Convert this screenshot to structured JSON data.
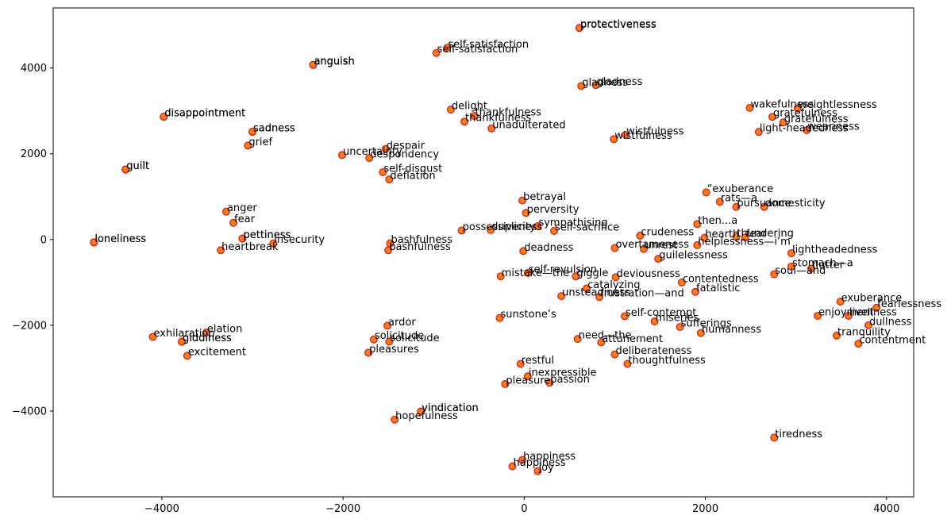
{
  "chart_data": {
    "type": "scatter",
    "title": "",
    "xlabel": "",
    "ylabel": "",
    "xlim": [
      -5200,
      4300
    ],
    "ylim": [
      -6000,
      5400
    ],
    "xticks": [
      -4000,
      -2000,
      0,
      2000,
      4000
    ],
    "xtick_labels": [
      "−4000",
      "−2000",
      "0",
      "2000",
      "4000"
    ],
    "yticks": [
      -4000,
      -2000,
      0,
      2000,
      4000
    ],
    "ytick_labels": [
      "−4000",
      "−2000",
      "0",
      "2000",
      "4000"
    ],
    "grid": false,
    "marker_fill": "#ff7f0e",
    "marker_edge": "#d62728",
    "points": [
      {
        "label": "protectiveness",
        "x": 610,
        "y": 4930
      },
      {
        "label": "protectiveness",
        "x": 610,
        "y": 4935
      },
      {
        "label": "self-satisfaction",
        "x": -850,
        "y": 4470
      },
      {
        "label": "self-satisfaction",
        "x": -970,
        "y": 4350
      },
      {
        "label": "anguish",
        "x": -2330,
        "y": 4070
      },
      {
        "label": "anguish",
        "x": -2330,
        "y": 4075
      },
      {
        "label": "gladness",
        "x": 790,
        "y": 3600
      },
      {
        "label": "gladness",
        "x": 630,
        "y": 3580
      },
      {
        "label": "disappointment",
        "x": -3980,
        "y": 2860
      },
      {
        "label": "disappointment",
        "x": -3980,
        "y": 2865
      },
      {
        "label": "delight",
        "x": -810,
        "y": 3030
      },
      {
        "label": "thankfulness",
        "x": -550,
        "y": 2880
      },
      {
        "label": "thankfulness",
        "x": -660,
        "y": 2750
      },
      {
        "label": "unadulterated",
        "x": -360,
        "y": 2590
      },
      {
        "label": "sadness",
        "x": -3000,
        "y": 2510
      },
      {
        "label": "sadness",
        "x": -3000,
        "y": 2515
      },
      {
        "label": "grief",
        "x": -3050,
        "y": 2190
      },
      {
        "label": "wistfulness",
        "x": 1120,
        "y": 2440
      },
      {
        "label": "wistfulness",
        "x": 990,
        "y": 2340
      },
      {
        "label": "wakefulness",
        "x": 2490,
        "y": 3070
      },
      {
        "label": "weightlessness",
        "x": 3020,
        "y": 3060
      },
      {
        "label": "gratefulness",
        "x": 2740,
        "y": 2860
      },
      {
        "label": "gratefulness",
        "x": 2860,
        "y": 2730
      },
      {
        "label": "light-headedness",
        "x": 2590,
        "y": 2510
      },
      {
        "label": "weariness",
        "x": 3120,
        "y": 2550
      },
      {
        "label": "uncertainty",
        "x": -2010,
        "y": 1970
      },
      {
        "label": "despair",
        "x": -1530,
        "y": 2110
      },
      {
        "label": "despondency",
        "x": -1710,
        "y": 1900
      },
      {
        "label": "self-disgust",
        "x": -1560,
        "y": 1570
      },
      {
        "label": "deflation",
        "x": -1490,
        "y": 1400
      },
      {
        "label": "guilt",
        "x": -4400,
        "y": 1630
      },
      {
        "label": "guilt",
        "x": -4400,
        "y": 1635
      },
      {
        "label": "betrayal",
        "x": -20,
        "y": 910
      },
      {
        "label": "perversity",
        "x": 20,
        "y": 620
      },
      {
        "label": "“exuberance",
        "x": 2010,
        "y": 1100
      },
      {
        "label": "rats—a",
        "x": 2160,
        "y": 880
      },
      {
        "label": "pursuance",
        "x": 2340,
        "y": 760
      },
      {
        "label": "domesticity",
        "x": 2650,
        "y": 760
      },
      {
        "label": "anger",
        "x": -3290,
        "y": 650
      },
      {
        "label": "fear",
        "x": -3210,
        "y": 390
      },
      {
        "label": "pettiness",
        "x": -3110,
        "y": 20
      },
      {
        "label": "pettiness",
        "x": -3110,
        "y": 25
      },
      {
        "label": "insecurity",
        "x": -2770,
        "y": -90
      },
      {
        "label": "heartbreak",
        "x": -3350,
        "y": -250
      },
      {
        "label": "loneliness",
        "x": -4750,
        "y": -70
      },
      {
        "label": "loneliness",
        "x": -4750,
        "y": -65
      },
      {
        "label": "possessiveness",
        "x": -690,
        "y": 210
      },
      {
        "label": "duplicity",
        "x": -370,
        "y": 220
      },
      {
        "label": "sympathising",
        "x": 150,
        "y": 310
      },
      {
        "label": "self-sacrifice",
        "x": 330,
        "y": 200
      },
      {
        "label": "then...a",
        "x": 1910,
        "y": 360
      },
      {
        "label": "crudeness",
        "x": 1280,
        "y": 90
      },
      {
        "label": "hearth",
        "x": 1990,
        "y": 40
      },
      {
        "label": "thundering",
        "x": 2340,
        "y": 60
      },
      {
        "label": "fear",
        "x": 2440,
        "y": 50
      },
      {
        "label": "helplessness—i’m",
        "x": 1910,
        "y": -130
      },
      {
        "label": "overtameness",
        "x": 1000,
        "y": -200
      },
      {
        "label": "unrest",
        "x": 1320,
        "y": -220
      },
      {
        "label": "guilelessness",
        "x": 1480,
        "y": -450
      },
      {
        "label": "bashfulness",
        "x": -1480,
        "y": -90
      },
      {
        "label": "bashfulness",
        "x": -1500,
        "y": -250
      },
      {
        "label": "deadness",
        "x": -10,
        "y": -270
      },
      {
        "label": "lightheadedness",
        "x": 2950,
        "y": -320
      },
      {
        "label": "stomach—a",
        "x": 2950,
        "y": -630
      },
      {
        "label": "flutter",
        "x": 3170,
        "y": -680
      },
      {
        "label": "soul—and",
        "x": 2760,
        "y": -810
      },
      {
        "label": "mistake—the",
        "x": -260,
        "y": -860
      },
      {
        "label": "self-revulsion",
        "x": 40,
        "y": -780
      },
      {
        "label": "giggle",
        "x": 570,
        "y": -860
      },
      {
        "label": "deviousness",
        "x": 1010,
        "y": -880
      },
      {
        "label": "contentedness",
        "x": 1740,
        "y": -1000
      },
      {
        "label": "catalyzing",
        "x": 690,
        "y": -1140
      },
      {
        "label": "fatalistic",
        "x": 1890,
        "y": -1220
      },
      {
        "label": "unsteadiness",
        "x": 410,
        "y": -1320
      },
      {
        "label": "frustration—and",
        "x": 830,
        "y": -1340
      },
      {
        "label": "exuberance",
        "x": 3490,
        "y": -1450
      },
      {
        "label": "fearlessness",
        "x": 3890,
        "y": -1590
      },
      {
        "label": "enjoyment",
        "x": 3240,
        "y": -1780
      },
      {
        "label": "liveliness",
        "x": 3580,
        "y": -1780
      },
      {
        "label": "dullness",
        "x": 3800,
        "y": -2000
      },
      {
        "label": "tranquility",
        "x": 3450,
        "y": -2240
      },
      {
        "label": "contentment",
        "x": 3690,
        "y": -2430
      },
      {
        "label": "sunstone’s",
        "x": -270,
        "y": -1830
      },
      {
        "label": "self-contempt",
        "x": 1110,
        "y": -1790
      },
      {
        "label": "miseries",
        "x": 1440,
        "y": -1910
      },
      {
        "label": "sufferings",
        "x": 1720,
        "y": -2040
      },
      {
        "label": "humanness",
        "x": 1950,
        "y": -2180
      },
      {
        "label": "need—the",
        "x": 590,
        "y": -2320
      },
      {
        "label": "attunement",
        "x": 850,
        "y": -2400
      },
      {
        "label": "deliberateness",
        "x": 1000,
        "y": -2680
      },
      {
        "label": "thoughtfulness",
        "x": 1140,
        "y": -2900
      },
      {
        "label": "elation",
        "x": -3510,
        "y": -2170
      },
      {
        "label": "exhilaration",
        "x": -4100,
        "y": -2270
      },
      {
        "label": "giddiness",
        "x": -3780,
        "y": -2380
      },
      {
        "label": "giddiness",
        "x": -3780,
        "y": -2385
      },
      {
        "label": "excitement",
        "x": -3720,
        "y": -2710
      },
      {
        "label": "ardor",
        "x": -1510,
        "y": -2010
      },
      {
        "label": "solicitude",
        "x": -1660,
        "y": -2330
      },
      {
        "label": "solicitude",
        "x": -1490,
        "y": -2380
      },
      {
        "label": "pleasures",
        "x": -1720,
        "y": -2640
      },
      {
        "label": "restful",
        "x": -40,
        "y": -2900
      },
      {
        "label": "inexpressible",
        "x": 40,
        "y": -3190
      },
      {
        "label": "passion",
        "x": 280,
        "y": -3340
      },
      {
        "label": "pleasure",
        "x": -210,
        "y": -3370
      },
      {
        "label": "vindication",
        "x": -1140,
        "y": -4010
      },
      {
        "label": "vindication",
        "x": -1140,
        "y": -4015
      },
      {
        "label": "hopefulness",
        "x": -1430,
        "y": -4200
      },
      {
        "label": "tiredness",
        "x": 2760,
        "y": -4620
      },
      {
        "label": "happiness",
        "x": -20,
        "y": -5140
      },
      {
        "label": "happiness",
        "x": -130,
        "y": -5290
      },
      {
        "label": "joy",
        "x": 150,
        "y": -5400
      }
    ]
  }
}
